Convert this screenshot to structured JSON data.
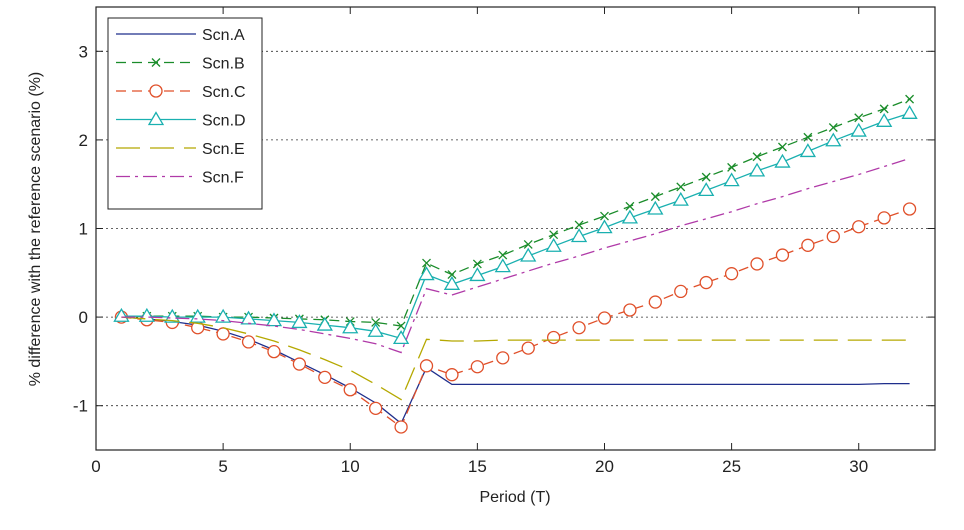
{
  "chart_data": {
    "type": "line",
    "title": "",
    "xlabel": "Period (T)",
    "ylabel": "% difference with the reference scenario (%)",
    "xlim": [
      0,
      33
    ],
    "ylim": [
      -1.5,
      3.5
    ],
    "xticks": [
      0,
      5,
      10,
      15,
      20,
      25,
      30
    ],
    "yticks": [
      -1,
      0,
      1,
      2,
      3
    ],
    "grid": "horizontal-dotted",
    "legend_position": "top-left",
    "x": [
      1,
      2,
      3,
      4,
      5,
      6,
      7,
      8,
      9,
      10,
      11,
      12,
      13,
      14,
      15,
      16,
      17,
      18,
      19,
      20,
      21,
      22,
      23,
      24,
      25,
      26,
      27,
      28,
      29,
      30,
      31,
      32
    ],
    "series": [
      {
        "name": "Scn.A",
        "color": "#1f2e8c",
        "dash": "none",
        "marker": "none",
        "values": [
          0,
          -0.02,
          -0.05,
          -0.09,
          -0.16,
          -0.25,
          -0.37,
          -0.51,
          -0.65,
          -0.8,
          -0.97,
          -1.2,
          -0.57,
          -0.76,
          -0.76,
          -0.76,
          -0.76,
          -0.76,
          -0.76,
          -0.76,
          -0.76,
          -0.76,
          -0.76,
          -0.76,
          -0.76,
          -0.76,
          -0.76,
          -0.76,
          -0.76,
          -0.76,
          -0.75,
          -0.75
        ]
      },
      {
        "name": "Scn.B",
        "color": "#1a8c2a",
        "dash": "10,6",
        "marker": "x",
        "values": [
          0.01,
          0.01,
          0.01,
          0.01,
          0.0,
          0.0,
          -0.01,
          -0.02,
          -0.03,
          -0.05,
          -0.06,
          -0.1,
          0.61,
          0.48,
          0.6,
          0.7,
          0.82,
          0.93,
          1.04,
          1.14,
          1.25,
          1.36,
          1.47,
          1.58,
          1.69,
          1.81,
          1.92,
          2.03,
          2.14,
          2.25,
          2.35,
          2.46
        ]
      },
      {
        "name": "Scn.C",
        "color": "#e0502a",
        "dash": "10,6",
        "marker": "circle",
        "values": [
          0,
          -0.03,
          -0.06,
          -0.12,
          -0.19,
          -0.28,
          -0.39,
          -0.53,
          -0.68,
          -0.82,
          -1.03,
          -1.24,
          -0.55,
          -0.65,
          -0.56,
          -0.46,
          -0.35,
          -0.23,
          -0.12,
          -0.01,
          0.08,
          0.17,
          0.29,
          0.39,
          0.49,
          0.6,
          0.7,
          0.81,
          0.91,
          1.02,
          1.12,
          1.22
        ]
      },
      {
        "name": "Scn.D",
        "color": "#1ab0b0",
        "dash": "none",
        "marker": "triangle",
        "values": [
          0.01,
          0.01,
          0.0,
          0.0,
          0.0,
          -0.02,
          -0.04,
          -0.06,
          -0.09,
          -0.12,
          -0.16,
          -0.24,
          0.48,
          0.37,
          0.47,
          0.57,
          0.69,
          0.8,
          0.91,
          1.01,
          1.12,
          1.22,
          1.32,
          1.43,
          1.54,
          1.65,
          1.75,
          1.87,
          1.99,
          2.1,
          2.21,
          2.3
        ]
      },
      {
        "name": "Scn.E",
        "color": "#b5a800",
        "dash": "24,10",
        "marker": "none",
        "values": [
          0,
          -0.02,
          -0.04,
          -0.07,
          -0.12,
          -0.19,
          -0.27,
          -0.37,
          -0.48,
          -0.6,
          -0.76,
          -0.93,
          -0.25,
          -0.27,
          -0.27,
          -0.26,
          -0.26,
          -0.26,
          -0.26,
          -0.26,
          -0.26,
          -0.26,
          -0.26,
          -0.26,
          -0.26,
          -0.26,
          -0.26,
          -0.26,
          -0.26,
          -0.26,
          -0.26,
          -0.26
        ]
      },
      {
        "name": "Scn.F",
        "color": "#b03aa8",
        "dash": "14,5,3,5",
        "marker": "none",
        "values": [
          0,
          0,
          -0.01,
          -0.02,
          -0.04,
          -0.07,
          -0.1,
          -0.14,
          -0.19,
          -0.24,
          -0.3,
          -0.4,
          0.32,
          0.25,
          0.34,
          0.43,
          0.52,
          0.61,
          0.69,
          0.78,
          0.86,
          0.94,
          1.03,
          1.11,
          1.19,
          1.28,
          1.36,
          1.45,
          1.53,
          1.61,
          1.7,
          1.79
        ]
      }
    ]
  }
}
